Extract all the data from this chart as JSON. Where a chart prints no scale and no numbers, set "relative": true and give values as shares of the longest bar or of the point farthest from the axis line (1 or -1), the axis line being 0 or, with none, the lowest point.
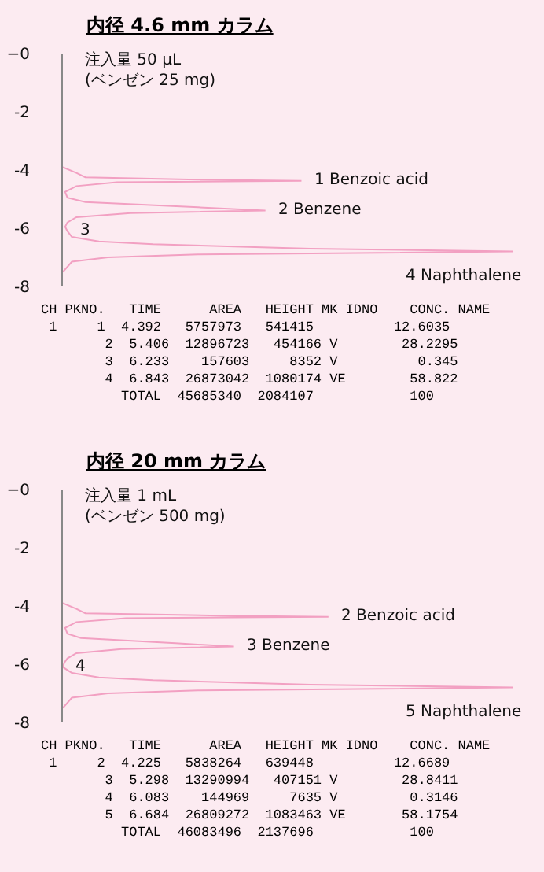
{
  "chart_data": [
    {
      "type": "line",
      "title": "内径 4.6 mm カラム",
      "subtitle": "注入量 50 µL\n(ベンゼン 25 mg)",
      "relative": true,
      "orientation": "horizontal",
      "tick_labels": "y",
      "ylim": [
        -8,
        0
      ],
      "yticks": [
        {
          "value": 0,
          "label": "−0"
        },
        -2,
        -4,
        -6,
        -8
      ],
      "series": [
        {
          "color": "#f2a0c2",
          "x": [
            -3.9,
            -4.1,
            -4.25,
            -4.33,
            -4.37,
            -4.42,
            -4.55,
            -4.75,
            -4.95,
            -5.1,
            -5.28,
            -5.39,
            -5.48,
            -5.62,
            -5.8,
            -5.95,
            -6.1,
            -6.3,
            -6.45,
            -6.55,
            -6.7,
            -6.8,
            -6.9,
            -7.0,
            -7.15,
            -7.5
          ],
          "values": [
            0,
            0.03,
            0.05,
            0.3,
            0.53,
            0.12,
            0.03,
            0.005,
            0.01,
            0.05,
            0.3,
            0.45,
            0.15,
            0.03,
            0.01,
            0.005,
            0.01,
            0.02,
            0.08,
            0.2,
            0.55,
            1,
            0.3,
            0.1,
            0.02,
            0
          ]
        }
      ],
      "annotations": [
        {
          "text": "1 Benzoic acid",
          "x": 0.53,
          "y": -4.37
        },
        {
          "text": "2 Benzene",
          "x": 0.45,
          "y": -5.39
        },
        {
          "text": "3",
          "x": 0.01,
          "y": -6.1
        },
        {
          "text": "4 Naphthalene",
          "x": 1,
          "y": -6.8
        },
        "CH PKNO.   TIME      AREA   HEIGHT MK IDNO    CONC. NAME",
        " 1     1  4.392   5757973   541415          12.6035",
        "        2  5.406  12896723   454166 V        28.2295",
        "        3  6.233    157603     8352 V          0.345",
        "        4  6.843  26873042  1080174 VE        58.822",
        "          TOTAL  45685340  2084107            100"
      ]
    },
    {
      "type": "line",
      "title": "内径 20 mm カラム",
      "subtitle": "注入量 1 mL\n(ベンゼン 500 mg)",
      "relative": true,
      "orientation": "horizontal",
      "tick_labels": "y",
      "ylim": [
        -8,
        0
      ],
      "yticks": [
        {
          "value": 0,
          "label": "−0"
        },
        -2,
        -4,
        -6,
        -8
      ],
      "series": [
        {
          "color": "#f2a0c2",
          "x": [
            -3.9,
            -4.1,
            -4.25,
            -4.33,
            -4.37,
            -4.42,
            -4.55,
            -4.75,
            -4.95,
            -5.1,
            -5.28,
            -5.39,
            -5.48,
            -5.62,
            -5.8,
            -5.95,
            -6.1,
            -6.3,
            -6.45,
            -6.55,
            -6.7,
            -6.8,
            -6.9,
            -7.0,
            -7.15,
            -7.5
          ],
          "values": [
            0,
            0.03,
            0.05,
            0.35,
            0.59,
            0.14,
            0.03,
            0.005,
            0.01,
            0.04,
            0.25,
            0.38,
            0.13,
            0.03,
            0.01,
            0.003,
            0.0,
            0.02,
            0.08,
            0.2,
            0.55,
            1,
            0.3,
            0.1,
            0.02,
            0
          ]
        }
      ],
      "annotations": [
        {
          "text": "2 Benzoic acid",
          "x": 0.59,
          "y": -4.37
        },
        {
          "text": "3 Benzene",
          "x": 0.38,
          "y": -5.39
        },
        {
          "text": "4",
          "x": 0.0,
          "y": -6.1
        },
        {
          "text": "5 Naphthalene",
          "x": 1,
          "y": -6.8
        },
        "CH PKNO.   TIME      AREA   HEIGHT MK IDNO    CONC. NAME",
        " 1     2  4.225   5838264   639448          12.6689",
        "        3  5.298  13290994   407151 V        28.8411",
        "        4  6.083    144969     7635 V         0.3146",
        "        5  6.684  26809272  1083463 VE       58.1754",
        "          TOTAL  46083496  2137696            100"
      ]
    }
  ]
}
